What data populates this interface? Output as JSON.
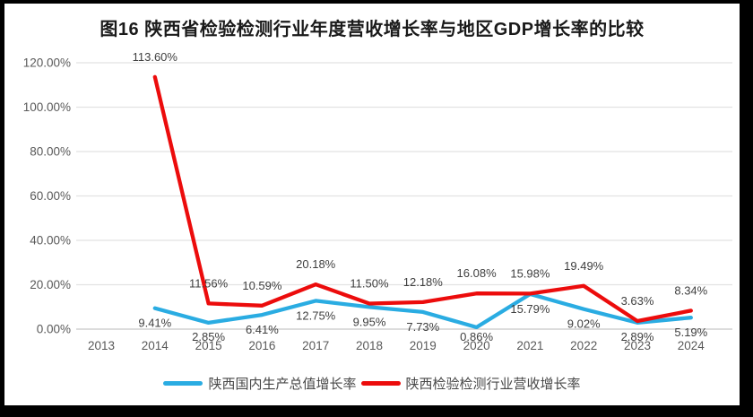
{
  "title": "图16 陕西省检验检测行业年度营收增长率与地区GDP增长率的比较",
  "colors": {
    "page_background": "#000000",
    "chart_background": "#ffffff",
    "gdp_line": "#2aace2",
    "industry_line": "#ec0c0c",
    "gridline": "#e2e2e2",
    "axis_line": "#c8c8c8",
    "axis_text": "#595959",
    "data_label_text": "#3f3f3f",
    "title_text": "#1a1a1a"
  },
  "legend": {
    "position": "bottom-center",
    "items": [
      {
        "label": "陕西国内生产总值增长率",
        "color": "#2aace2"
      },
      {
        "label": "陕西检验检测行业营收增长率",
        "color": "#ec0c0c"
      }
    ]
  },
  "chart_data": {
    "type": "line",
    "title": "图16 陕西省检验检测行业年度营收增长率与地区GDP增长率的比较",
    "categories": [
      "2013",
      "2014",
      "2015",
      "2016",
      "2017",
      "2018",
      "2019",
      "2020",
      "2021",
      "2022",
      "2023",
      "2024"
    ],
    "series": [
      {
        "name": "陕西国内生产总值增长率",
        "color": "#2aace2",
        "label_position": "below",
        "values": [
          null,
          9.41,
          2.85,
          6.41,
          12.75,
          9.95,
          7.73,
          0.86,
          15.79,
          9.02,
          2.89,
          5.19
        ]
      },
      {
        "name": "陕西检验检测行业营收增长率",
        "color": "#ec0c0c",
        "label_position": "above",
        "values": [
          null,
          113.6,
          11.56,
          10.59,
          20.18,
          11.5,
          12.18,
          16.08,
          15.98,
          19.49,
          3.63,
          8.34
        ]
      }
    ],
    "xlabel": "",
    "ylabel": "",
    "ylim": [
      0,
      120
    ],
    "ytick_step": 20,
    "ytick_format": "0.00%",
    "grid": true,
    "legend_position": "bottom",
    "data_labels_shown": true
  }
}
